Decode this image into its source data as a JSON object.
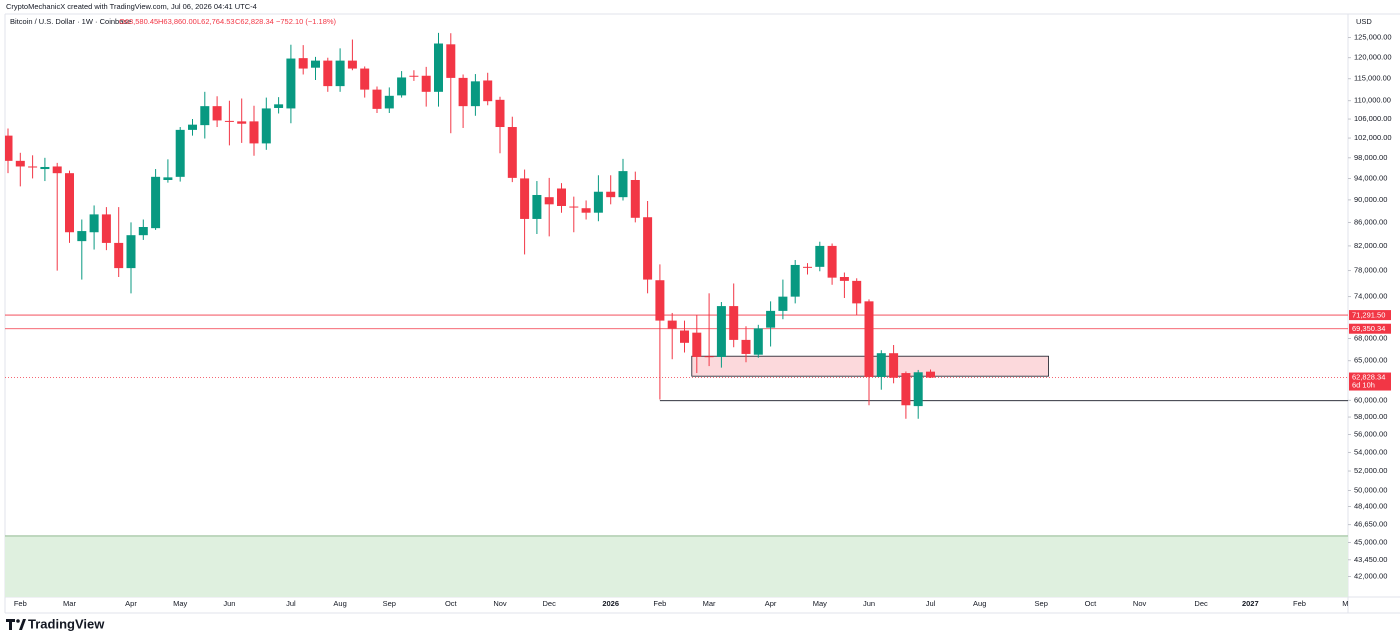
{
  "chart_data": {
    "type": "candlestick",
    "credit": "CryptoMechanicX created with TradingView.com, Jul 06, 2026 04:41 UTC-4",
    "legend": {
      "symbol": "Bitcoin / U.S. Dollar · 1W · Coinbase",
      "open": "O63,580.45",
      "high": "H63,860.00",
      "low": "L62,764.53",
      "close": "C62,828.34",
      "change": "−752.10 (−1.18%)"
    },
    "currency": "USD",
    "brand": "TradingView",
    "up_color": "#089981",
    "down_color": "#f23645",
    "log": true,
    "ylim": [
      40300,
      131100
    ],
    "yticks": [
      {
        "value": 125000,
        "label": "125,000.00"
      },
      {
        "value": 120000,
        "label": "120,000.00"
      },
      {
        "value": 115000,
        "label": "115,000.00"
      },
      {
        "value": 110000,
        "label": "110,000.00"
      },
      {
        "value": 106000,
        "label": "106,000.00"
      },
      {
        "value": 102000,
        "label": "102,000.00"
      },
      {
        "value": 98000,
        "label": "98,000.00"
      },
      {
        "value": 94000,
        "label": "94,000.00"
      },
      {
        "value": 90000,
        "label": "90,000.00"
      },
      {
        "value": 86000,
        "label": "86,000.00"
      },
      {
        "value": 82000,
        "label": "82,000.00"
      },
      {
        "value": 78000,
        "label": "78,000.00"
      },
      {
        "value": 74000,
        "label": "74,000.00"
      },
      {
        "value": 68000,
        "label": "68,000.00"
      },
      {
        "value": 65000,
        "label": "65,000.00"
      },
      {
        "value": 60000,
        "label": "60,000.00"
      },
      {
        "value": 58000,
        "label": "58,000.00"
      },
      {
        "value": 56000,
        "label": "56,000.00"
      },
      {
        "value": 54000,
        "label": "54,000.00"
      },
      {
        "value": 52000,
        "label": "52,000.00"
      },
      {
        "value": 50000,
        "label": "50,000.00"
      },
      {
        "value": 48400,
        "label": "48,400.00"
      },
      {
        "value": 46650,
        "label": "46,650.00"
      },
      {
        "value": 45000,
        "label": "45,000.00"
      },
      {
        "value": 43450,
        "label": "43,450.00"
      },
      {
        "value": 42000,
        "label": "42,000.00"
      }
    ],
    "categories": [
      null,
      "Feb",
      null,
      null,
      null,
      "Mar",
      null,
      null,
      null,
      null,
      "Apr",
      null,
      null,
      null,
      "May",
      null,
      null,
      null,
      "Jun",
      null,
      null,
      null,
      null,
      "Jul",
      null,
      null,
      null,
      "Aug",
      null,
      null,
      null,
      "Sep",
      null,
      null,
      null,
      null,
      "Oct",
      null,
      null,
      null,
      "Nov",
      null,
      null,
      null,
      "Dec",
      null,
      null,
      null,
      null,
      "2026",
      null,
      null,
      null,
      "Feb",
      null,
      null,
      null,
      "Mar",
      null,
      null,
      null,
      null,
      "Apr",
      null,
      null,
      null,
      "May",
      null,
      null,
      null,
      "Jun",
      null,
      null,
      null,
      null,
      "Jul",
      null,
      null,
      null,
      "Aug",
      null,
      null,
      null,
      null,
      "Sep",
      null,
      null,
      null,
      "Oct",
      null,
      null,
      null,
      "Nov",
      null,
      null,
      null,
      null,
      "Dec",
      null,
      null,
      null,
      "2027",
      null,
      null,
      null,
      "Feb",
      null,
      null,
      null,
      "Mar"
    ],
    "open": [
      102500,
      97400,
      96300,
      95800,
      96300,
      95000,
      82800,
      84300,
      87400,
      82500,
      78400,
      83800,
      85000,
      93700,
      94300,
      103700,
      104700,
      108800,
      105600,
      105500,
      105500,
      100900,
      108400,
      108300,
      119900,
      117600,
      119300,
      113300,
      119300,
      117400,
      112500,
      108300,
      111200,
      115700,
      115700,
      112000,
      123300,
      115200,
      108800,
      114600,
      110200,
      104300,
      94000,
      86600,
      90500,
      92100,
      88800,
      88500,
      87700,
      91500,
      90500,
      93700,
      86900,
      76500,
      70500,
      69100,
      68800,
      65600,
      65500,
      72600,
      67800,
      65800,
      69500,
      71900,
      74000,
      78600,
      78600,
      82000,
      77000,
      76400,
      73300,
      62900,
      66000,
      63400,
      59300,
      63580.45,
      null,
      null,
      null,
      null,
      null,
      null,
      null,
      null,
      null,
      null,
      null,
      null,
      null,
      null,
      null,
      null,
      null,
      null,
      null,
      null,
      null,
      null,
      null,
      null,
      null,
      null,
      null,
      null,
      null,
      null,
      null,
      null,
      null,
      null
    ],
    "high": [
      104000,
      99000,
      98500,
      98000,
      97000,
      95500,
      86500,
      89000,
      88700,
      88700,
      86000,
      86500,
      95800,
      97700,
      104300,
      106000,
      112000,
      111000,
      110000,
      110500,
      108900,
      110700,
      110800,
      123200,
      123100,
      120200,
      120000,
      122300,
      124500,
      117900,
      113200,
      113000,
      116800,
      117000,
      117800,
      126200,
      126100,
      116000,
      116100,
      116400,
      110900,
      106500,
      95700,
      93500,
      94100,
      93100,
      90600,
      89900,
      94600,
      94600,
      97800,
      95300,
      89800,
      79000,
      71600,
      70500,
      71300,
      74500,
      73200,
      76000,
      69700,
      69900,
      73300,
      76600,
      79700,
      79200,
      82700,
      82400,
      77700,
      76800,
      73600,
      66400,
      67100,
      63600,
      63800,
      63860,
      null,
      null,
      null,
      null,
      null,
      null,
      null,
      null,
      null,
      null,
      null,
      null,
      null,
      null,
      null,
      null,
      null,
      null,
      null,
      null,
      null,
      null,
      null,
      null,
      null,
      null,
      null,
      null,
      null,
      null,
      null,
      null,
      null,
      null
    ],
    "low": [
      95000,
      92500,
      94000,
      93500,
      78000,
      82500,
      76600,
      81400,
      81300,
      77000,
      74500,
      83000,
      84700,
      93200,
      93400,
      102500,
      101900,
      104300,
      100500,
      101000,
      98400,
      99600,
      107200,
      105100,
      116000,
      114700,
      112000,
      112000,
      117000,
      110700,
      107300,
      107300,
      110700,
      114500,
      108700,
      108700,
      103000,
      104100,
      106700,
      109000,
      98900,
      93300,
      80600,
      84000,
      83600,
      87700,
      84300,
      86500,
      86200,
      89200,
      89900,
      86000,
      74500,
      60100,
      65200,
      66100,
      63400,
      64300,
      64100,
      66800,
      64800,
      65400,
      66900,
      70700,
      73000,
      77400,
      77900,
      75800,
      73800,
      71300,
      59400,
      61300,
      62100,
      57800,
      57800,
      62764.53,
      null,
      null,
      null,
      null,
      null,
      null,
      null,
      null,
      null,
      null,
      null,
      null,
      null,
      null,
      null,
      null,
      null,
      null,
      null,
      null,
      null,
      null,
      null,
      null,
      null,
      null,
      null,
      null,
      null,
      null,
      null,
      null,
      null,
      null
    ],
    "close": [
      97400,
      96300,
      96100,
      96200,
      95000,
      84300,
      84500,
      87400,
      82500,
      78400,
      83800,
      85200,
      94300,
      94200,
      103700,
      104800,
      108800,
      105700,
      105500,
      105000,
      100900,
      108300,
      109200,
      119800,
      117400,
      119300,
      113300,
      119300,
      117400,
      112500,
      108200,
      111100,
      115300,
      115600,
      112000,
      123500,
      115200,
      108800,
      114400,
      109900,
      104300,
      94100,
      86600,
      90900,
      89200,
      88900,
      88700,
      87700,
      91500,
      90500,
      95400,
      86800,
      76600,
      70500,
      69400,
      67400,
      65500,
      65500,
      72600,
      67800,
      65900,
      69400,
      71900,
      74000,
      78900,
      78500,
      82000,
      76900,
      76400,
      73000,
      62900,
      66000,
      62800,
      59400,
      63500,
      62828.34,
      null,
      null,
      null,
      null,
      null,
      null,
      null,
      null,
      null,
      null,
      null,
      null,
      null,
      null,
      null,
      null,
      null,
      null,
      null,
      null,
      null,
      null,
      null,
      null,
      null,
      null,
      null,
      null,
      null,
      null,
      null,
      null,
      null,
      null
    ],
    "levels": [
      {
        "value": 71291.5,
        "label": "71,291.50",
        "color": "#f23645"
      },
      {
        "value": 69350.34,
        "label": "69,350.34",
        "color": "#f23645"
      }
    ],
    "last_price": {
      "value": 62828.34,
      "label": "62,828.34",
      "countdown": "6d 10h",
      "color": "#f23645"
    },
    "zone": {
      "top": 65600,
      "bottom": 63000,
      "color": "#fcd9dc"
    },
    "support_line": {
      "value": 59950,
      "color": "#131722"
    },
    "demand_zone": {
      "top": 45600,
      "color": "#dff0df",
      "border": "#9bbf9b"
    }
  }
}
